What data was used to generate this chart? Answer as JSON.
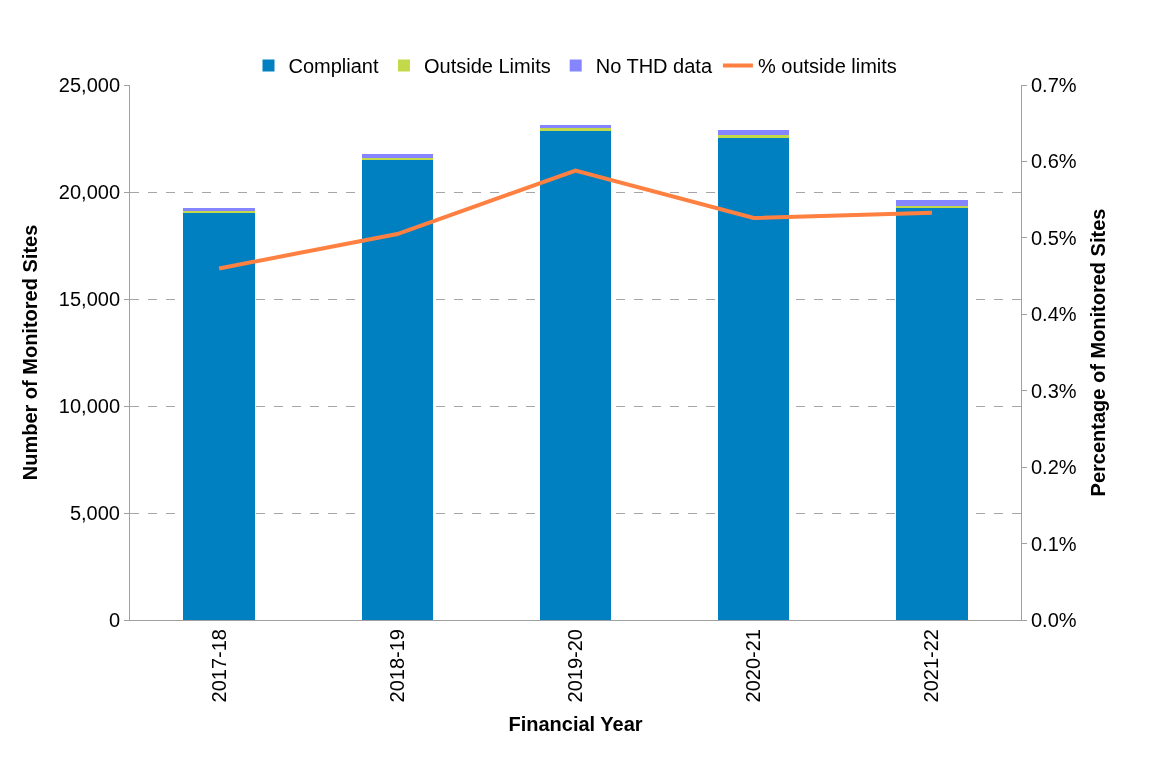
{
  "chart_data": {
    "type": "bar",
    "stacked": true,
    "xlabel": "Financial Year",
    "ylabel": "Number of Monitored Sites",
    "y2label": "Percentage of Monitored Sites",
    "categories": [
      "2017-18",
      "2018-19",
      "2019-20",
      "2020-21",
      "2021-22"
    ],
    "series": [
      {
        "name": "Compliant",
        "color": "#0080c0",
        "values": [
          19030,
          21490,
          22860,
          22530,
          19230
        ]
      },
      {
        "name": "Outside Limits",
        "color": "#c4d94a",
        "values": [
          90,
          110,
          140,
          120,
          100
        ]
      },
      {
        "name": "No THD data",
        "color": "#8585ff",
        "values": [
          130,
          160,
          120,
          260,
          280
        ]
      },
      {
        "name": "% outside limits",
        "color": "#ff8040",
        "type": "line",
        "axis": "y2",
        "values": [
          0.46,
          0.505,
          0.588,
          0.526,
          0.533
        ]
      }
    ],
    "ylim": [
      0,
      25000
    ],
    "yticks": [
      0,
      {
        "value": 5000,
        "label": "5,000"
      },
      {
        "value": 10000,
        "label": "10,000"
      },
      {
        "value": 15000,
        "label": "15,000"
      },
      {
        "value": 20000,
        "label": "20,000"
      },
      {
        "value": 25000,
        "label": "25,000"
      }
    ],
    "y2lim": [
      0,
      0.7
    ],
    "y2ticks": [
      {
        "value": 0,
        "label": "0.0%"
      },
      {
        "value": 0.1,
        "label": "0.1%"
      },
      {
        "value": 0.2,
        "label": "0.2%"
      },
      {
        "value": 0.3,
        "label": "0.3%"
      },
      {
        "value": 0.4,
        "label": "0.4%"
      },
      {
        "value": 0.5,
        "label": "0.5%"
      },
      {
        "value": 0.6,
        "label": "0.6%"
      },
      {
        "value": 0.7,
        "label": "0.7%"
      }
    ],
    "grid": "y",
    "legend": "top",
    "marker": "none",
    "line_style": "solid"
  }
}
